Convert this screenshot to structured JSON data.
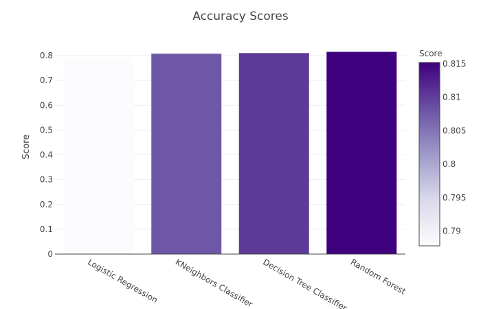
{
  "chart_data": {
    "type": "bar",
    "title": "Accuracy Scores",
    "xlabel": "",
    "ylabel": "Score",
    "categories": [
      "Logistic Regression",
      "KNeighbors Classifier",
      "Decision Tree Classifier",
      "Random Forest"
    ],
    "values": [
      0.7878,
      0.8078,
      0.8103,
      0.8152
    ],
    "ylim": [
      0,
      0.8
    ],
    "yticks": [
      "0",
      "0.1",
      "0.2",
      "0.3",
      "0.4",
      "0.5",
      "0.6",
      "0.7",
      "0.8"
    ],
    "grid": true,
    "colorbar": {
      "title": "Score",
      "range": [
        0.7878,
        0.8152
      ],
      "ticks": [
        "0.79",
        "0.795",
        "0.8",
        "0.805",
        "0.81",
        "0.815"
      ],
      "colors": [
        "#fcfbfd",
        "#dadaeb",
        "#9e9ac8",
        "#6a51a3",
        "#3f007d"
      ]
    }
  }
}
